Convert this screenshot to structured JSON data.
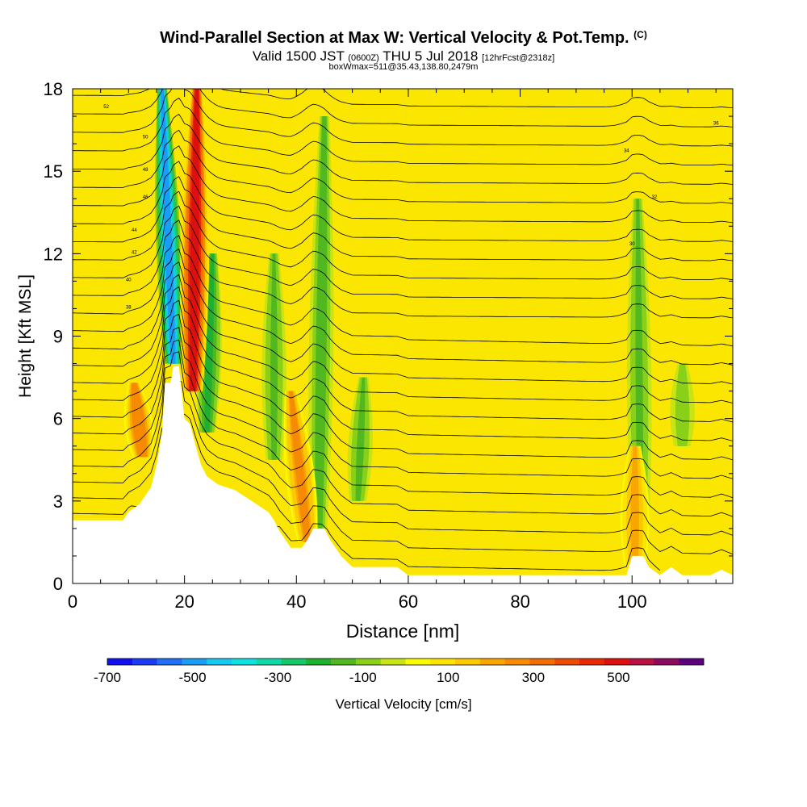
{
  "header": {
    "title": "Wind-Parallel Section at Max W: Vertical Velocity & Pot.Temp.",
    "copyright": "(C)",
    "valid_a": "Valid 1500 JST",
    "valid_b": "(0600Z)",
    "valid_c": "THU 5 Jul 2018",
    "valid_d": "[12hrFcst@2318z]",
    "box_info": "boxWmax=511@35.43,138.80,2479m"
  },
  "chart_data": {
    "type": "heatmap",
    "xlabel": "Distance [nm]",
    "ylabel": "Height [Kft MSL]",
    "xlim": [
      0,
      118
    ],
    "ylim": [
      0,
      18
    ],
    "x_ticks": [
      0,
      20,
      40,
      60,
      80,
      100
    ],
    "y_ticks": [
      0,
      3,
      6,
      9,
      12,
      15,
      18
    ],
    "colorbar": {
      "label": "Vertical Velocity [cm/s]",
      "tick_labels": [
        "-700",
        "-500",
        "-300",
        "-100",
        "100",
        "300",
        "500"
      ],
      "tick_values": [
        -700,
        -500,
        -300,
        -100,
        100,
        300,
        500
      ],
      "colors": [
        "#1010f0",
        "#1a3cf5",
        "#1f6ff7",
        "#1a9ef5",
        "#18c8f0",
        "#10e0e0",
        "#10d8a8",
        "#16c86a",
        "#20b030",
        "#52b820",
        "#8ad018",
        "#c8e414",
        "#fafa00",
        "#fde400",
        "#fcc800",
        "#f9a600",
        "#f68a00",
        "#f26c00",
        "#ee4a00",
        "#e82a00",
        "#dc1010",
        "#b81040",
        "#8c0a60",
        "#5c0080"
      ]
    },
    "potential_temperature_contour_labels": [
      "52",
      "50",
      "48",
      "46",
      "44",
      "42",
      "40",
      "38",
      "36",
      "34",
      "32",
      "30"
    ],
    "terrain_profile_kft": [
      [
        0,
        2.3
      ],
      [
        5,
        2.3
      ],
      [
        9,
        2.3
      ],
      [
        10,
        2.6
      ],
      [
        12,
        2.9
      ],
      [
        13,
        3.2
      ],
      [
        14,
        3.5
      ],
      [
        15,
        4.3
      ],
      [
        16,
        5.5
      ],
      [
        16.5,
        7.3
      ],
      [
        17.5,
        7.3
      ],
      [
        18,
        7.9
      ],
      [
        19,
        7.9
      ],
      [
        20,
        6.0
      ],
      [
        21,
        5.8
      ],
      [
        22,
        5.0
      ],
      [
        23,
        4.3
      ],
      [
        24,
        3.9
      ],
      [
        26,
        3.6
      ],
      [
        29,
        3.4
      ],
      [
        32,
        3.0
      ],
      [
        35,
        2.6
      ],
      [
        36,
        2.3
      ],
      [
        37,
        1.9
      ],
      [
        38,
        1.6
      ],
      [
        39,
        1.3
      ],
      [
        41,
        1.3
      ],
      [
        42,
        1.6
      ],
      [
        43,
        2.0
      ],
      [
        45,
        2.0
      ],
      [
        46,
        1.6
      ],
      [
        47,
        1.3
      ],
      [
        48,
        1.0
      ],
      [
        50,
        0.6
      ],
      [
        53,
        0.6
      ],
      [
        58,
        0.6
      ],
      [
        60,
        0.3
      ],
      [
        66,
        0.3
      ],
      [
        80,
        0.3
      ],
      [
        99,
        0.3
      ],
      [
        100,
        1.0
      ],
      [
        102,
        1.0
      ],
      [
        103,
        0.6
      ],
      [
        105,
        0.3
      ],
      [
        107,
        0.6
      ],
      [
        109,
        0.3
      ],
      [
        114,
        0.3
      ],
      [
        116,
        0.5
      ],
      [
        118,
        0.3
      ]
    ],
    "updraft_plumes": [
      {
        "x_base": 12.5,
        "x_top": 11.0,
        "y_bottom": 4.6,
        "y_top": 7.3,
        "peak": 280
      },
      {
        "x_base": 21.5,
        "x_top": 22.2,
        "y_bottom": 7.0,
        "y_top": 18.0,
        "peak": 511
      },
      {
        "x_base": 42.0,
        "x_top": 39.0,
        "y_bottom": 1.5,
        "y_top": 7.0,
        "peak": 250
      },
      {
        "x_base": 100.5,
        "x_top": 100.5,
        "y_bottom": 0.5,
        "y_top": 5.0,
        "peak": 200
      }
    ],
    "downdraft_plumes": [
      {
        "x_base": 18.0,
        "x_top": 16.0,
        "y_bottom": 8.0,
        "y_top": 18.0,
        "peak": -520
      },
      {
        "x_base": 24.0,
        "x_top": 25.0,
        "y_bottom": 5.5,
        "y_top": 12.0,
        "peak": -200
      },
      {
        "x_base": 44.0,
        "x_top": 45.0,
        "y_bottom": 2.0,
        "y_top": 17.0,
        "peak": -150
      },
      {
        "x_base": 51.0,
        "x_top": 52.0,
        "y_bottom": 3.0,
        "y_top": 7.5,
        "peak": -140
      },
      {
        "x_base": 36.0,
        "x_top": 36.0,
        "y_bottom": 4.5,
        "y_top": 12.0,
        "peak": -120
      },
      {
        "x_base": 101.5,
        "x_top": 101.0,
        "y_bottom": 2.0,
        "y_top": 14.0,
        "peak": -130
      },
      {
        "x_base": 109.0,
        "x_top": 109.0,
        "y_bottom": 5.0,
        "y_top": 8.0,
        "peak": -110
      }
    ]
  }
}
